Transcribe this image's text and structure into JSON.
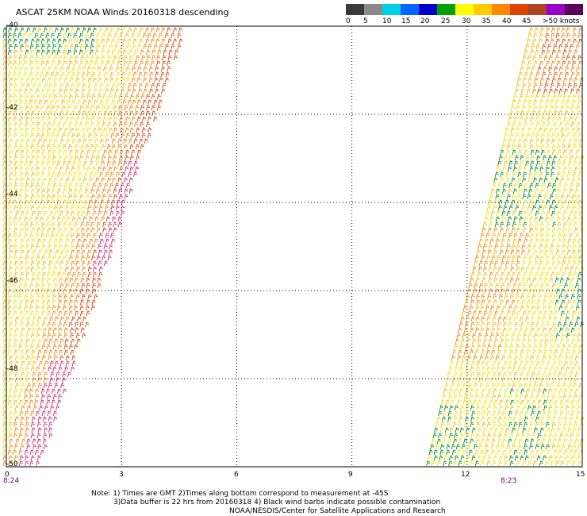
{
  "title": "ASCAT 25KM NOAA Winds 20160318 descending",
  "legend": {
    "colors": [
      "#3a3a3a",
      "#8a8a8a",
      "#00cfe8",
      "#0066ff",
      "#0000cc",
      "#00a000",
      "#ffff00",
      "#ffcc00",
      "#ff8800",
      "#dd4400",
      "#aa4422",
      "#9900cc",
      "#5a005a"
    ],
    "labels": [
      "0",
      "5",
      "10",
      "15",
      "20",
      "25",
      "30",
      "35",
      "40",
      "45",
      ">50 knots"
    ]
  },
  "axes": {
    "y_labels": [
      "-40",
      "-42",
      "-44",
      "-46",
      "-48",
      "-50"
    ],
    "x_labels": [
      "0",
      "3",
      "6",
      "9",
      "12",
      "15"
    ],
    "time_labels": [
      "8:24",
      "8:23"
    ]
  },
  "notes": [
    "Note: 1) Times are GMT 2)Times along bottom correspond to measurement at -45S",
    "3)Data buffer is 22 hrs from 20160318 4) Black wind barbs indicate possible contamination",
    "NOAA/NESDIS/Center for Satellite Applications and Research"
  ],
  "chart_data": {
    "type": "scatter",
    "title": "ASCAT 25KM NOAA Winds 20160318 descending",
    "xlabel": "",
    "ylabel": "",
    "xlim": [
      0,
      15
    ],
    "ylim": [
      -50,
      -40
    ],
    "grid": true,
    "legend_placement": "top-right",
    "swaths": [
      {
        "time": "8:24",
        "lon_range_at_top": [
          0,
          4.7
        ],
        "lon_range_at_bottom": [
          0,
          0.8
        ],
        "wind_knots_range": [
          20,
          45
        ]
      },
      {
        "time": "8:23",
        "lon_range_at_top": [
          13.6,
          15
        ],
        "lon_range_at_bottom": [
          11.0,
          15
        ],
        "wind_knots_range": [
          15,
          35
        ]
      }
    ]
  }
}
